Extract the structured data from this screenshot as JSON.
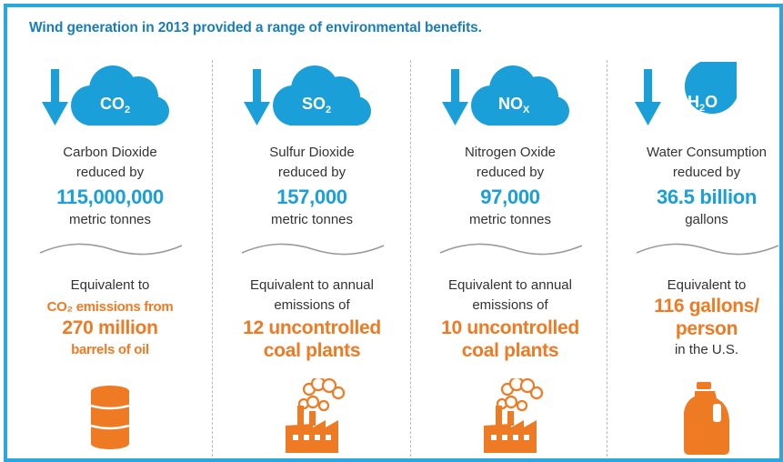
{
  "header": {
    "title": "Wind generation in 2013 provided a range of environmental benefits."
  },
  "colors": {
    "border": "#29a8e0",
    "blue": "#1a9fd8",
    "title": "#1a7db8",
    "orange": "#ef7a24"
  },
  "columns": [
    {
      "icon": "co2-cloud-icon",
      "symbol": "CO",
      "symbol_sub": "2",
      "name": "Carbon Dioxide",
      "reduced": "reduced by",
      "amount": "115,000,000",
      "unit": "metric tonnes",
      "eq_intro": "Equivalent to",
      "eq_line1": "CO₂ emissions from",
      "eq_line2": "270 million",
      "eq_line3": "barrels of oil",
      "bottom_icon": "oil-barrel-icon"
    },
    {
      "icon": "so2-cloud-icon",
      "symbol": "SO",
      "symbol_sub": "2",
      "name": "Sulfur Dioxide",
      "reduced": "reduced by",
      "amount": "157,000",
      "unit": "metric tonnes",
      "eq_intro": "Equivalent to annual",
      "eq_line1": "emissions of",
      "eq_line2": "12 uncontrolled",
      "eq_line3": "coal plants",
      "bottom_icon": "factory-icon"
    },
    {
      "icon": "nox-cloud-icon",
      "symbol": "NO",
      "symbol_sub": "X",
      "name": "Nitrogen Oxide",
      "reduced": "reduced by",
      "amount": "97,000",
      "unit": "metric tonnes",
      "eq_intro": "Equivalent to annual",
      "eq_line1": "emissions of",
      "eq_line2": "10 uncontrolled",
      "eq_line3": "coal plants",
      "bottom_icon": "factory-icon"
    },
    {
      "icon": "water-drop-icon",
      "symbol": "H",
      "symbol_sub": "2",
      "symbol_tail": "O",
      "name": "Water Consumption",
      "reduced": "reduced by",
      "amount": "36.5 billion",
      "unit": "gallons",
      "eq_intro": "Equivalent to",
      "eq_line1": "116 gallons/",
      "eq_line2": "person",
      "eq_line3": "in the U.S.",
      "bottom_icon": "water-jug-icon"
    }
  ]
}
